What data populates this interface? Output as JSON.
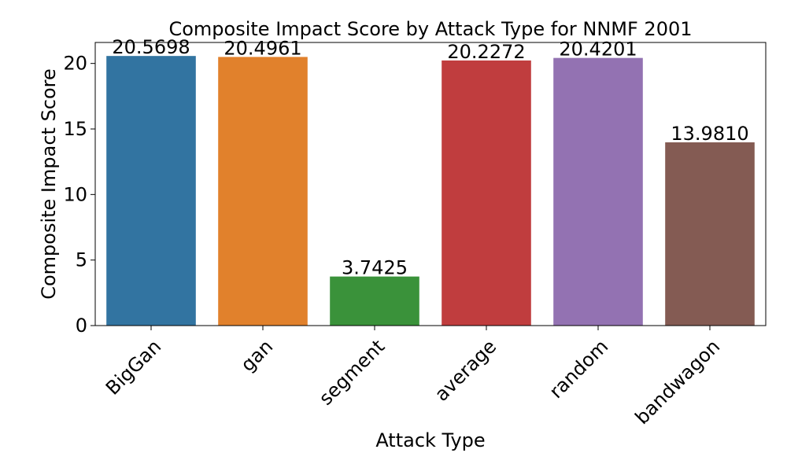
{
  "chart_data": {
    "type": "bar",
    "title": "Composite Impact Score by Attack Type for NNMF 2001",
    "xlabel": "Attack Type",
    "ylabel": "Composite Impact Score",
    "categories": [
      "BigGan",
      "gan",
      "segment",
      "average",
      "random",
      "bandwagon"
    ],
    "values": [
      20.5698,
      20.4961,
      3.7425,
      20.2272,
      20.4201,
      13.981
    ],
    "value_labels": [
      "20.5698",
      "20.4961",
      "3.7425",
      "20.2272",
      "20.4201",
      "13.9810"
    ],
    "colors": [
      "#3274a1",
      "#e1812c",
      "#3a923a",
      "#c03d3e",
      "#9372b2",
      "#845b53"
    ],
    "ylim": [
      0,
      21.6
    ],
    "yticks": [
      0,
      5,
      10,
      15,
      20
    ],
    "grid": false,
    "legend": "none"
  }
}
